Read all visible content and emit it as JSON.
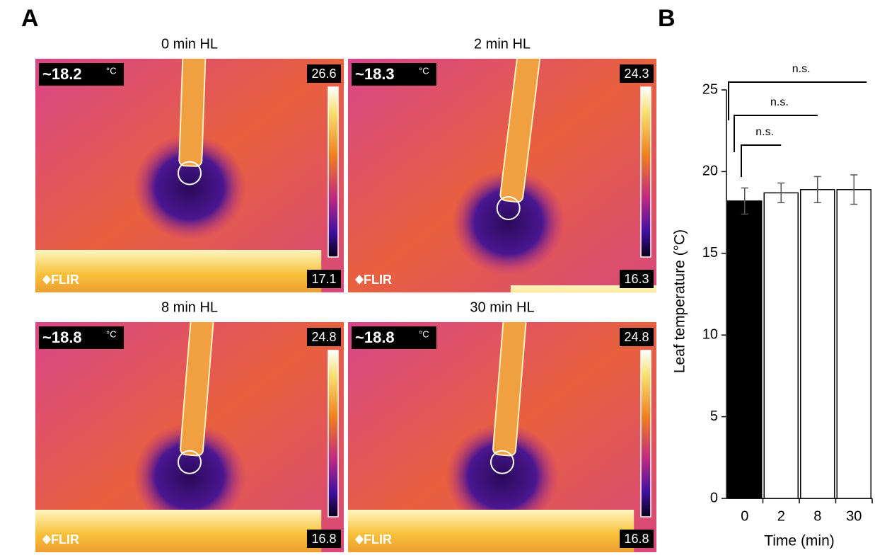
{
  "panel_a": {
    "label": "A",
    "images": [
      {
        "title": "0 min HL",
        "spot": "~18.2",
        "unit": "°C",
        "max": "26.6",
        "min": "17.1",
        "brand": "FLIR"
      },
      {
        "title": "2 min HL",
        "spot": "~18.3",
        "unit": "°C",
        "max": "24.3",
        "min": "16.3",
        "brand": "FLIR"
      },
      {
        "title": "8 min HL",
        "spot": "~18.8",
        "unit": "°C",
        "max": "24.8",
        "min": "16.8",
        "brand": "FLIR"
      },
      {
        "title": "30 min HL",
        "spot": "~18.8",
        "unit": "°C",
        "max": "24.8",
        "min": "16.8",
        "brand": "FLIR"
      }
    ]
  },
  "chart_data": {
    "type": "bar",
    "label": "B",
    "x_label": "Time (min)",
    "y_label": "Leaf temperature (°C)",
    "categories": [
      "0",
      "2",
      "8",
      "30"
    ],
    "values": [
      18.2,
      18.7,
      18.9,
      18.9
    ],
    "errors": [
      0.8,
      0.6,
      0.8,
      0.9
    ],
    "colors": [
      "#000000",
      "#ffffff",
      "#ffffff",
      "#ffffff"
    ],
    "ylim": [
      0,
      25
    ],
    "yticks": [
      0,
      5,
      10,
      15,
      20,
      25
    ],
    "annotations": [
      "n.s.",
      "n.s.",
      "n.s."
    ]
  }
}
